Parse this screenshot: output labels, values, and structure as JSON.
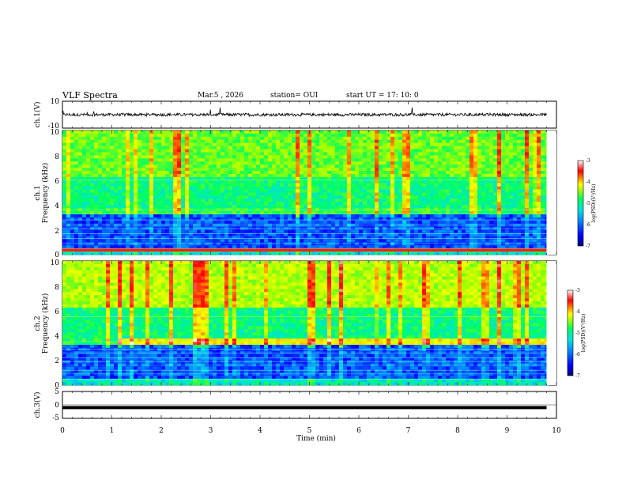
{
  "header": {
    "title": "VLF Spectra",
    "date": "Mar.5  , 2026",
    "station": "station= OUI",
    "start": "start  UT  =   17: 10: 0"
  },
  "chart_data": [
    {
      "type": "line",
      "panel": "ch1-waveform",
      "ylabel": "ch.1(V)",
      "ylim": [
        -10,
        10
      ],
      "yticks": [
        "10",
        "-10"
      ],
      "xlim": [
        0,
        10
      ],
      "baseline": 0
    },
    {
      "type": "heatmap",
      "panel": "ch1-spectrogram",
      "ylabel_line1": "ch.1",
      "ylabel_line2": "Frequency (kHz)",
      "ylim": [
        0,
        10
      ],
      "yticks": [
        "0",
        "2",
        "4",
        "6",
        "8",
        "10"
      ],
      "xlim": [
        0,
        10
      ],
      "colorbar_label": "log(PSD)(V²/Hz)",
      "colorbar_ticks": [
        "-3",
        "-4",
        "-5",
        "-6",
        "-7"
      ],
      "colorbar_range": [
        -7,
        -3
      ]
    },
    {
      "type": "heatmap",
      "panel": "ch2-spectrogram",
      "ylabel_line1": "ch.2",
      "ylabel_line2": "Frequency (kHz)",
      "ylim": [
        0,
        10
      ],
      "yticks": [
        "0",
        "2",
        "4",
        "6",
        "8",
        "10"
      ],
      "xlim": [
        0,
        10
      ],
      "colorbar_label": "log(PSD)(V²/Hz)",
      "colorbar_ticks": [
        "-3",
        "-4",
        "-5",
        "-6",
        "-7"
      ],
      "colorbar_range": [
        -7,
        -3
      ]
    },
    {
      "type": "line",
      "panel": "ch3-waveform",
      "ylabel": "ch.3(V)",
      "ylim": [
        -5,
        5
      ],
      "yticks": [
        "5",
        "0",
        "-5"
      ],
      "xlim": [
        0,
        10
      ],
      "baseline": -1
    }
  ],
  "xaxis": {
    "label": "Time (min)",
    "ticks": [
      "0",
      "1",
      "2",
      "3",
      "4",
      "5",
      "6",
      "7",
      "8",
      "9",
      "10"
    ]
  },
  "colors": {
    "cmap": [
      "#00007a",
      "#0000ff",
      "#0080ff",
      "#00e0e0",
      "#00ff60",
      "#a0ff00",
      "#ffff00",
      "#ff8000",
      "#ff0000",
      "#ffffff"
    ]
  }
}
